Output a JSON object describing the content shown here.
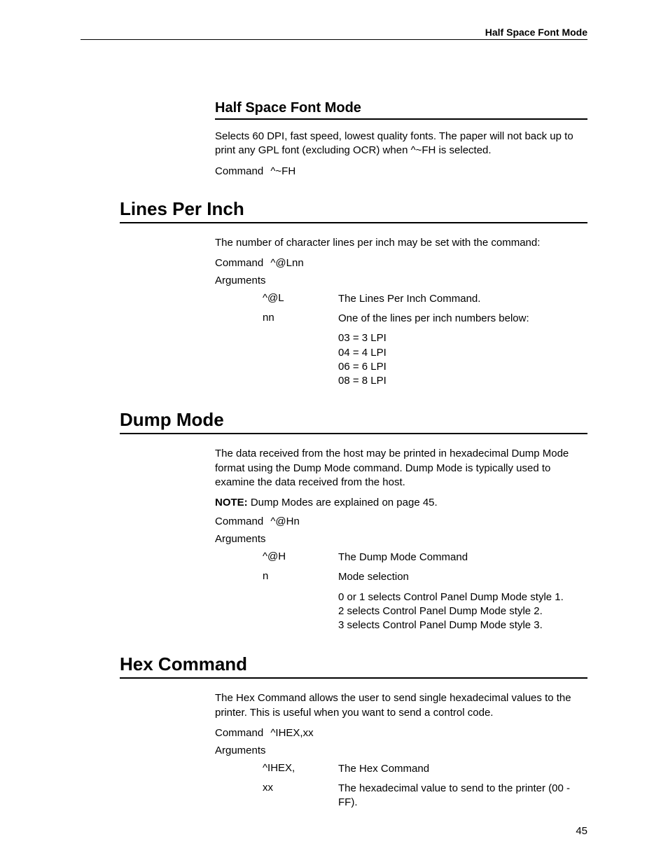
{
  "page": {
    "running_header": "Half Space Font Mode",
    "footer_page": "45"
  },
  "sections": {
    "half_space": {
      "title": "Half Space Font Mode",
      "intro": "Selects 60 DPI, fast speed, lowest quality fonts. The paper will not back up to print any GPL font (excluding OCR) when ^~FH is selected.",
      "command_label": "Command",
      "command_value": "^~FH"
    },
    "lpi": {
      "title": "Lines Per Inch",
      "intro": "The number of character lines per inch may be set with the command:",
      "command_label": "Command",
      "command_value": "^@Lnn",
      "arguments_label": "Arguments",
      "arg1_key": "^@L",
      "arg1_val": "The Lines Per Inch Command.",
      "arg2_key": "nn",
      "arg2_val": "One of the lines per inch numbers below:",
      "arg2_extra": "03 = 3 LPI\n04 = 4 LPI\n06 = 6 LPI\n08 = 8 LPI"
    },
    "dump": {
      "title": "Dump Mode",
      "intro": "The data received from the host may be printed in hexadecimal Dump Mode format using the Dump Mode command. Dump Mode is typically used to examine the data received from the host.",
      "note_label": "NOTE:",
      "note_text": "Dump Modes are explained on page 45.",
      "command_label": "Command",
      "command_value": "^@Hn",
      "arguments_label": "Arguments",
      "arg1_key": "^@H",
      "arg1_val": "The Dump Mode Command",
      "arg2_key": "n",
      "arg2_val": "Mode selection",
      "arg2_extra": "0 or 1 selects Control Panel Dump Mode style 1.\n2 selects Control Panel Dump Mode style 2.\n3 selects Control Panel Dump Mode style 3."
    },
    "hex": {
      "title": "Hex Command",
      "intro": "The Hex Command allows the user to send single hexadecimal values to the printer. This is useful when you want to send a control code.",
      "command_label": "Command",
      "command_value": "^IHEX,xx",
      "arguments_label": "Arguments",
      "arg1_key": "^IHEX,",
      "arg1_val": "The Hex Command",
      "arg2_key": "xx",
      "arg2_val": "The hexadecimal value to send to the printer (00 - FF)."
    }
  }
}
